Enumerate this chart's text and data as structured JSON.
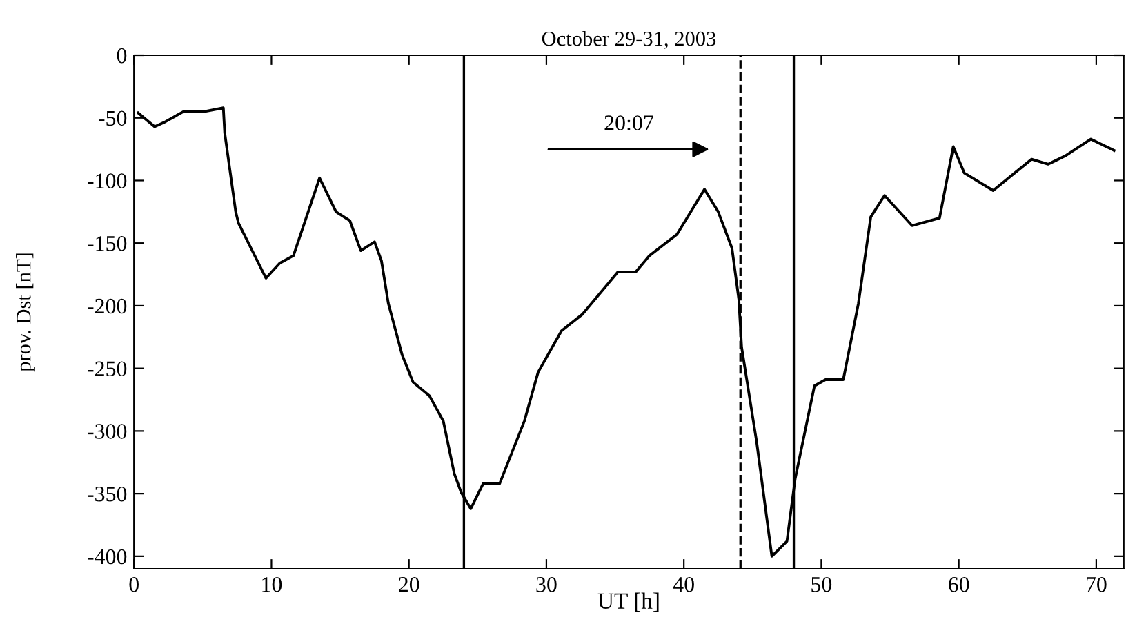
{
  "chart_data": {
    "type": "line",
    "title": "October 29-31, 2003",
    "xlabel": "UT [h]",
    "ylabel": "prov. Dst [nT]",
    "xlim": [
      0,
      72
    ],
    "ylim": [
      -410,
      0
    ],
    "xticks": [
      0,
      10,
      20,
      30,
      40,
      50,
      60,
      70
    ],
    "yticks": [
      0,
      -50,
      -100,
      -150,
      -200,
      -250,
      -300,
      -350,
      -400
    ],
    "annotations": [
      "20:07"
    ],
    "grid": false,
    "legend": false,
    "marker": "none",
    "line_style": "solid",
    "series": [
      {
        "color": "#000000",
        "x": [
          0.3,
          1.5,
          2.3,
          3.6,
          5.1,
          6.5,
          6.6,
          7.4,
          7.6,
          9.6,
          10.6,
          11.6,
          13.5,
          14.7,
          15.7,
          16.5,
          17.5,
          18.0,
          18.5,
          19.5,
          20.3,
          21.5,
          22.5,
          23.3,
          23.8,
          24.5,
          25.4,
          26.6,
          28.4,
          29.4,
          31.1,
          32.6,
          35.2,
          36.5,
          37.5,
          39.5,
          41.5,
          42.5,
          43.5,
          44.0,
          44.2,
          45.3,
          46.4,
          47.5,
          48.1,
          49.5,
          50.3,
          51.6,
          52.7,
          53.6,
          54.6,
          56.6,
          58.6,
          59.6,
          60.4,
          62.5,
          65.3,
          66.5,
          67.8,
          69.6,
          71.3
        ],
        "values": [
          -46,
          -57,
          -53,
          -45,
          -45,
          -42,
          -62,
          -125,
          -134,
          -178,
          -166,
          -160,
          -98,
          -125,
          -132,
          -156,
          -149,
          -164,
          -198,
          -239,
          -261,
          -272,
          -292,
          -334,
          -349,
          -362,
          -342,
          -342,
          -292,
          -253,
          -220,
          -207,
          -173,
          -173,
          -160,
          -143,
          -107,
          -125,
          -154,
          -195,
          -233,
          -309,
          -400,
          -388,
          -338,
          -264,
          -259,
          -259,
          -198,
          -129,
          -112,
          -136,
          -130,
          -73,
          -94,
          -108,
          -83,
          -87,
          -80,
          -67,
          -76
        ]
      }
    ],
    "ref_lines": [
      {
        "axis": "x",
        "value": 24,
        "color": "#000000",
        "line_style": "solid"
      },
      {
        "axis": "x",
        "value": 44.12,
        "color": "#000000",
        "line_style": "dashed"
      },
      {
        "axis": "x",
        "value": 48,
        "color": "#000000",
        "line_style": "solid"
      }
    ]
  }
}
